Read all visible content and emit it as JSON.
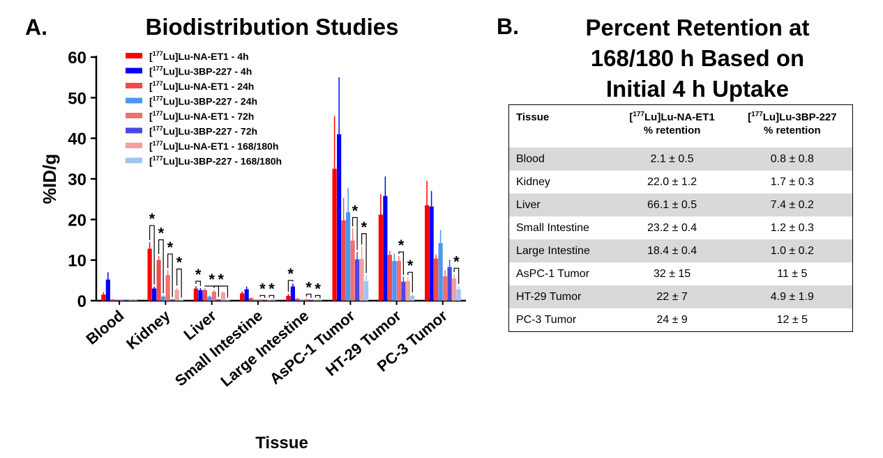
{
  "chart_data": [
    {
      "type": "bar",
      "panel_letter": "A.",
      "title": "Biodistribution Studies",
      "xlabel": "Tissue",
      "ylabel": "%ID/g",
      "ylim": [
        0,
        60
      ],
      "yticks": [
        "0",
        "10",
        "20",
        "30",
        "40",
        "50",
        "60"
      ],
      "grid": false,
      "legend_position": "top-left inside plot",
      "categories": [
        "Blood",
        "Kidney",
        "Liver",
        "Small Intestine",
        "Large Intestine",
        "AsPC-1 Tumor",
        "HT-29 Tumor",
        "PC-3 Tumor"
      ],
      "series": [
        {
          "name": "[177Lu]Lu-NA-ET1 - 4h",
          "color": "#ff0000",
          "values": [
            1.5,
            12.8,
            3.0,
            1.8,
            1.2,
            32.5,
            21.2,
            23.5
          ],
          "errors": [
            0.6,
            1.6,
            0.6,
            0.5,
            0.5,
            13.0,
            5.0,
            6.0
          ]
        },
        {
          "name": "[177Lu]Lu-3BP-227 - 4h",
          "color": "#0000ff",
          "values": [
            5.2,
            3.0,
            2.6,
            2.8,
            3.5,
            41.0,
            25.8,
            23.2
          ],
          "errors": [
            1.8,
            0.5,
            0.5,
            0.7,
            0.7,
            14.0,
            4.8,
            3.8
          ]
        },
        {
          "name": "[177Lu]Lu-NA-ET1 - 24h",
          "color": "#f04b4b",
          "values": [
            0.3,
            10.0,
            2.6,
            0.6,
            0.5,
            19.8,
            11.3,
            10.4
          ],
          "errors": [
            0.1,
            1.0,
            0.4,
            0.2,
            0.1,
            5.5,
            1.0,
            1.0
          ]
        },
        {
          "name": "[177Lu]Lu-3BP-227 - 24h",
          "color": "#4a96f0",
          "values": [
            0.1,
            1.0,
            1.0,
            0.2,
            0.2,
            21.8,
            9.8,
            14.2
          ],
          "errors": [
            0.05,
            0.3,
            0.3,
            0.1,
            0.1,
            6.0,
            1.8,
            3.2
          ]
        },
        {
          "name": "[177Lu]Lu-NA-ET1 - 72h",
          "color": "#f07070",
          "values": [
            0.2,
            6.3,
            2.2,
            0.3,
            0.4,
            14.8,
            9.8,
            6.0
          ],
          "errors": [
            0.1,
            1.2,
            0.4,
            0.1,
            0.1,
            3.0,
            1.2,
            1.5
          ]
        },
        {
          "name": "[177Lu]Lu-3BP-227 - 72h",
          "color": "#4848e6",
          "values": [
            0.1,
            0.3,
            0.3,
            0.1,
            0.1,
            10.2,
            4.7,
            8.3
          ],
          "errors": [
            0.05,
            0.1,
            0.1,
            0.05,
            0.05,
            1.8,
            1.2,
            1.8
          ]
        },
        {
          "name": "[177Lu]Lu-NA-ET1 - 168/180h",
          "color": "#f4a0a0",
          "values": [
            0.1,
            2.7,
            2.0,
            0.2,
            0.2,
            10.3,
            4.8,
            5.5
          ],
          "errors": [
            0.05,
            0.5,
            0.3,
            0.05,
            0.05,
            3.0,
            1.0,
            1.0
          ]
        },
        {
          "name": "[177Lu]Lu-3BP-227 - 168/180h",
          "color": "#9ec6f2",
          "values": [
            0.05,
            0.2,
            0.2,
            0.05,
            0.05,
            4.8,
            1.2,
            2.8
          ],
          "errors": [
            0.02,
            0.05,
            0.05,
            0.02,
            0.02,
            1.5,
            0.3,
            0.8
          ]
        }
      ],
      "significance_marker": "*",
      "significance_brackets": [
        {
          "category": "Kidney",
          "pair": [
            "4h",
            "4h"
          ],
          "top": 18.5
        },
        {
          "category": "Kidney",
          "pair": [
            "24h",
            "24h"
          ],
          "top": 15.0
        },
        {
          "category": "Kidney",
          "pair": [
            "72h",
            "72h"
          ],
          "top": 11.5
        },
        {
          "category": "Kidney",
          "pair": [
            "168/180h",
            "168/180h"
          ],
          "top": 7.8
        },
        {
          "category": "Liver",
          "pair": [
            "4h",
            "4h"
          ],
          "top": 4.8
        },
        {
          "category": "Liver",
          "pair": [
            "24h",
            "72h"
          ],
          "top": 3.6
        },
        {
          "category": "Liver",
          "pair": [
            "72h",
            "168/180h"
          ],
          "top": 3.6
        },
        {
          "category": "Small Intestine",
          "pair": [
            "72h",
            "72h"
          ],
          "top": 1.3
        },
        {
          "category": "Small Intestine",
          "pair": [
            "168/180h",
            "168/180h"
          ],
          "top": 1.3
        },
        {
          "category": "Large Intestine",
          "pair": [
            "4h",
            "4h"
          ],
          "top": 5.0
        },
        {
          "category": "Large Intestine",
          "pair": [
            "72h",
            "72h"
          ],
          "top": 1.6
        },
        {
          "category": "Large Intestine",
          "pair": [
            "168/180h",
            "168/180h"
          ],
          "top": 1.3
        },
        {
          "category": "AsPC-1 Tumor",
          "pair": [
            "72h",
            "72h"
          ],
          "top": 20.5
        },
        {
          "category": "AsPC-1 Tumor",
          "pair": [
            "168/180h",
            "168/180h"
          ],
          "top": 16.5
        },
        {
          "category": "HT-29 Tumor",
          "pair": [
            "72h",
            "72h"
          ],
          "top": 12.0
        },
        {
          "category": "HT-29 Tumor",
          "pair": [
            "168/180h",
            "168/180h"
          ],
          "top": 7.0
        },
        {
          "category": "PC-3 Tumor",
          "pair": [
            "168/180h",
            "168/180h"
          ],
          "top": 8.0
        }
      ]
    },
    {
      "type": "table",
      "panel_letter": "B.",
      "title_lines": [
        "Percent Retention at",
        "168/180 h Based on",
        "Initial 4 h Uptake"
      ],
      "columns": [
        {
          "pre": "Tissue",
          "sup": "",
          "post": "",
          "line2": ""
        },
        {
          "pre": "[",
          "sup": "177",
          "post": "Lu]Lu-NA-ET1",
          "line2": "% retention"
        },
        {
          "pre": "[",
          "sup": "177",
          "post": "Lu]Lu-3BP-227",
          "line2": "% retention"
        }
      ],
      "rows": [
        {
          "tissue": "Blood",
          "na_et1": "2.1 ± 0.5",
          "bp227": "0.8 ± 0.8"
        },
        {
          "tissue": "Kidney",
          "na_et1": "22.0 ± 1.2",
          "bp227": "1.7 ± 0.3"
        },
        {
          "tissue": "Liver",
          "na_et1": "66.1 ± 0.5",
          "bp227": "7.4 ± 0.2"
        },
        {
          "tissue": "Small Intestine",
          "na_et1": "23.2 ± 0.4",
          "bp227": "1.2 ± 0.3"
        },
        {
          "tissue": "Large Intestine",
          "na_et1": "18.4 ± 0.4",
          "bp227": "1.0 ± 0.2"
        },
        {
          "tissue": "AsPC-1 Tumor",
          "na_et1": "32 ± 15",
          "bp227": "11 ± 5"
        },
        {
          "tissue": "HT-29 Tumor",
          "na_et1": "22 ± 7",
          "bp227": "4.9  ± 1.9"
        },
        {
          "tissue": "PC-3 Tumor",
          "na_et1": "24 ± 9",
          "bp227": "12 ± 5"
        }
      ],
      "shaded_row_color": "#d9d9d9"
    }
  ]
}
